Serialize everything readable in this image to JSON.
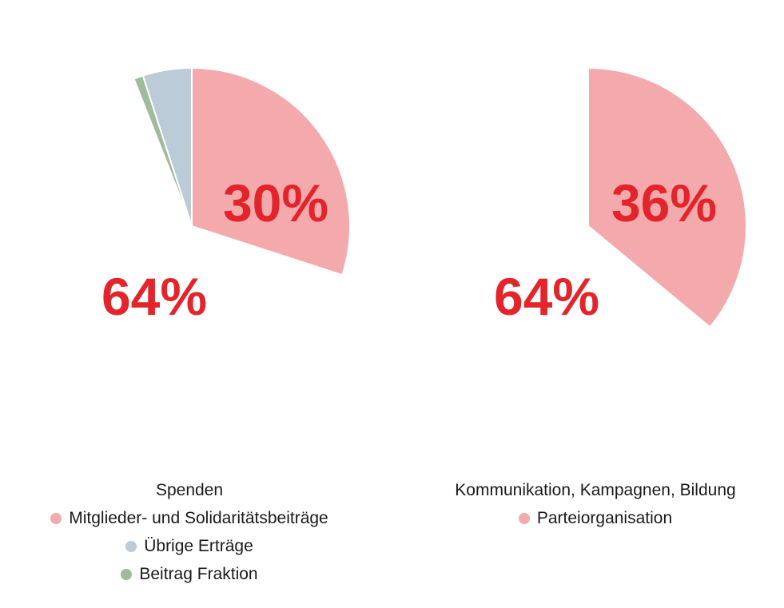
{
  "colors": {
    "label": "#e3242b",
    "slice_pink": "#f4a9ad",
    "slice_blue": "#bccbd8",
    "slice_green": "#9fbb9b"
  },
  "chart_data": [
    {
      "type": "pie",
      "labels": [
        "Spenden",
        "Mitglieder- und Solidaritätsbeiträge",
        "Übrige Erträge",
        "Beitrag Fraktion"
      ],
      "values": [
        64,
        30,
        5,
        1
      ],
      "label_texts": [
        "64%",
        "30%"
      ],
      "colors": [
        "#ffffff",
        "#f4a9ad",
        "#bccbd8",
        "#9fbb9b"
      ],
      "legend": [
        {
          "label": "Spenden",
          "marker": false
        },
        {
          "label": "Mitglieder- und Solidaritätsbeiträge",
          "marker": true,
          "color": "#f4a9ad"
        },
        {
          "label": "Übrige Erträge",
          "marker": true,
          "color": "#bccbd8"
        },
        {
          "label": "Beitrag Fraktion",
          "marker": true,
          "color": "#9fbb9b"
        }
      ]
    },
    {
      "type": "pie",
      "labels": [
        "Kommunikation, Kampagnen, Bildung",
        "Parteiorganisation"
      ],
      "values": [
        64,
        36
      ],
      "label_texts": [
        "64%",
        "36%"
      ],
      "colors": [
        "#ffffff",
        "#f4a9ad"
      ],
      "legend": [
        {
          "label": "Kommunikation, Kampagnen, Bildung",
          "marker": false
        },
        {
          "label": "Parteiorganisation",
          "marker": true,
          "color": "#f4a9ad"
        }
      ]
    }
  ]
}
